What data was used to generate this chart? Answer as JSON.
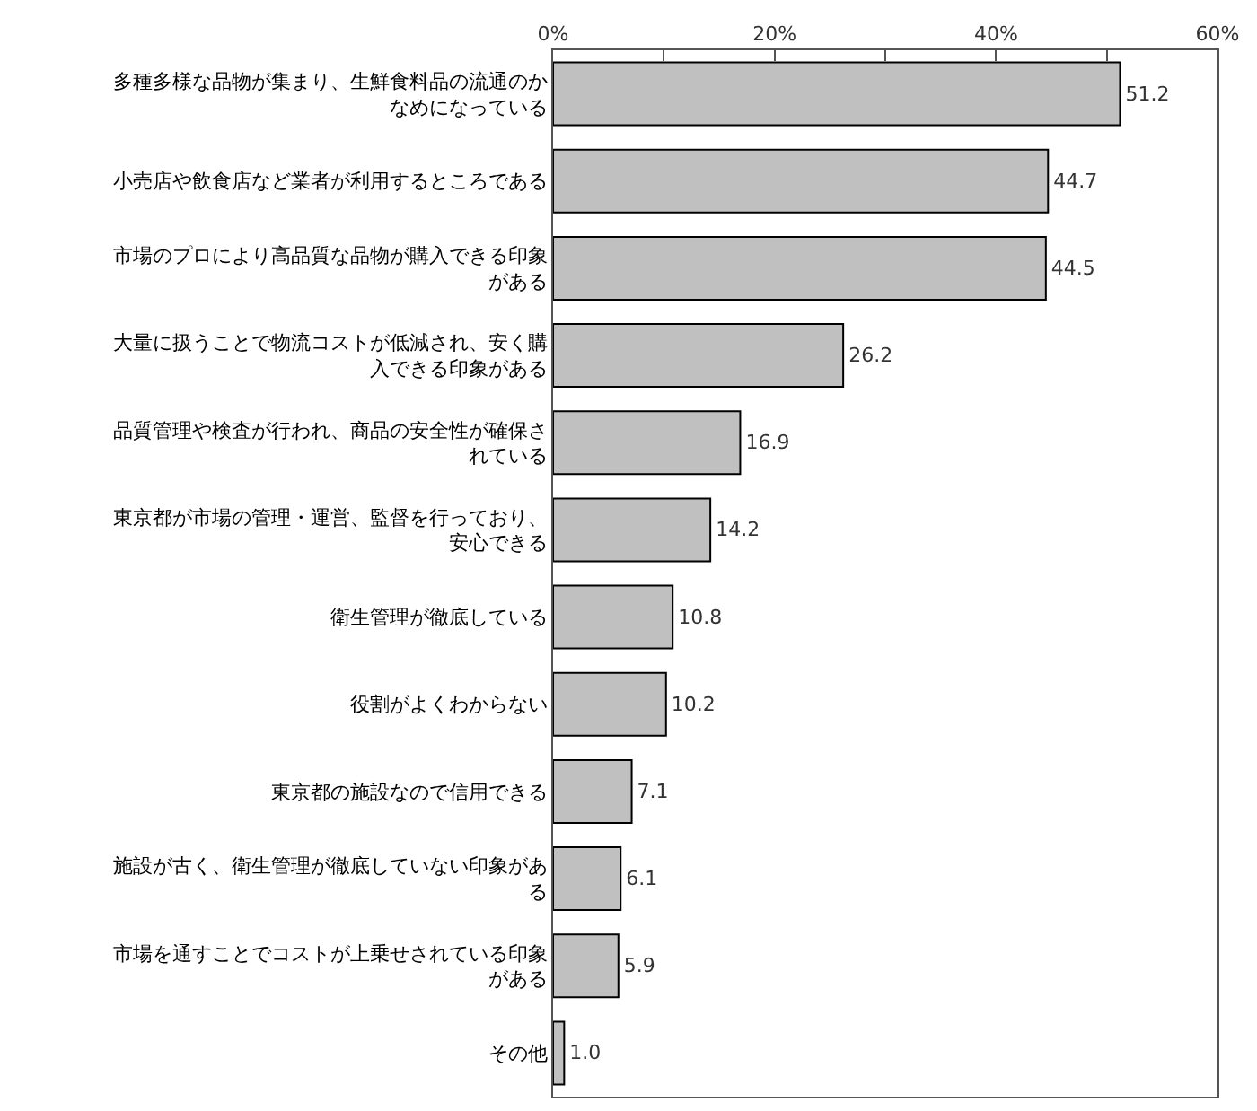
{
  "chart_data": {
    "type": "bar",
    "orientation": "horizontal",
    "categories": [
      "多種多様な品物が集まり、生鮮食料品の流通のかなめになっている",
      "小売店や飲食店など業者が利用するところである",
      "市場のプロにより高品質な品物が購入できる印象がある",
      "大量に扱うことで物流コストが低減され、安く購入できる印象がある",
      "品質管理や検査が行われ、商品の安全性が確保されている",
      "東京都が市場の管理・運営、監督を行っており、安心できる",
      "衛生管理が徹底している",
      "役割がよくわからない",
      "東京都の施設なので信用できる",
      "施設が古く、衛生管理が徹底していない印象がある",
      "市場を通すことでコストが上乗せされている印象がある",
      "その他"
    ],
    "values": [
      51.2,
      44.7,
      44.5,
      26.2,
      16.9,
      14.2,
      10.8,
      10.2,
      7.1,
      6.1,
      5.9,
      1.0
    ],
    "color": "#c0c0c0",
    "xlim": [
      0,
      60
    ],
    "xticks": [
      {
        "value": 0,
        "label": "0%"
      },
      {
        "value": 10,
        "label": null
      },
      {
        "value": 20,
        "label": "20%"
      },
      {
        "value": 30,
        "label": null
      },
      {
        "value": 40,
        "label": "40%"
      },
      {
        "value": 50,
        "label": null
      },
      {
        "value": 60,
        "label": "60%"
      }
    ],
    "value_labels": [
      "51.2",
      "44.7",
      "44.5",
      "26.2",
      "16.9",
      "14.2",
      "10.8",
      "10.2",
      "7.1",
      "6.1",
      "5.9",
      "1.0"
    ]
  }
}
